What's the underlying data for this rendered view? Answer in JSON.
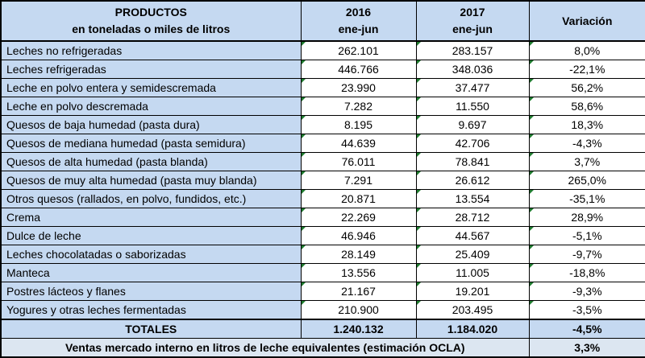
{
  "header": {
    "product_line1": "PRODUCTOS",
    "product_line2": "en toneladas o miles de litros",
    "y2016_line1": "2016",
    "y2016_line2": "ene-jun",
    "y2017_line1": "2017",
    "y2017_line2": "ene-jun",
    "variation": "Variación"
  },
  "rows": [
    {
      "product": "Leches no refrigeradas",
      "v2016": "262.101",
      "v2017": "283.157",
      "var": "8,0%"
    },
    {
      "product": "Leches refrigeradas",
      "v2016": "446.766",
      "v2017": "348.036",
      "var": "-22,1%"
    },
    {
      "product": "Leche en polvo entera y semidescremada",
      "v2016": "23.990",
      "v2017": "37.477",
      "var": "56,2%"
    },
    {
      "product": "Leche en polvo descremada",
      "v2016": "7.282",
      "v2017": "11.550",
      "var": "58,6%"
    },
    {
      "product": "Quesos de baja humedad (pasta dura)",
      "v2016": "8.195",
      "v2017": "9.697",
      "var": "18,3%"
    },
    {
      "product": "Quesos de mediana humedad (pasta semidura)",
      "v2016": "44.639",
      "v2017": "42.706",
      "var": "-4,3%"
    },
    {
      "product": "Quesos de alta humedad (pasta blanda)",
      "v2016": "76.011",
      "v2017": "78.841",
      "var": "3,7%"
    },
    {
      "product": "Quesos de muy alta humedad (pasta muy blanda)",
      "v2016": "7.291",
      "v2017": "26.612",
      "var": "265,0%"
    },
    {
      "product": "Otros quesos (rallados, en polvo, fundidos, etc.)",
      "v2016": "20.871",
      "v2017": "13.554",
      "var": "-35,1%"
    },
    {
      "product": "Crema",
      "v2016": "22.269",
      "v2017": "28.712",
      "var": "28,9%"
    },
    {
      "product": "Dulce de leche",
      "v2016": "46.946",
      "v2017": "44.567",
      "var": "-5,1%"
    },
    {
      "product": "Leches chocolatadas o saborizadas",
      "v2016": "28.149",
      "v2017": "25.409",
      "var": "-9,7%"
    },
    {
      "product": "Manteca",
      "v2016": "13.556",
      "v2017": "11.005",
      "var": "-18,8%"
    },
    {
      "product": "Postres lácteos y flanes",
      "v2016": "21.167",
      "v2017": "19.201",
      "var": "-9,3%"
    },
    {
      "product": "Yogures y otras leches fermentadas",
      "v2016": "210.900",
      "v2017": "203.495",
      "var": "-3,5%"
    }
  ],
  "totals": {
    "label": "TOTALES",
    "v2016": "1.240.132",
    "v2017": "1.184.020",
    "var": "-4,5%"
  },
  "footer": {
    "label": "Ventas mercado interno en litros de leche equivalentes (estimación OCLA)",
    "var": "3,3%"
  }
}
